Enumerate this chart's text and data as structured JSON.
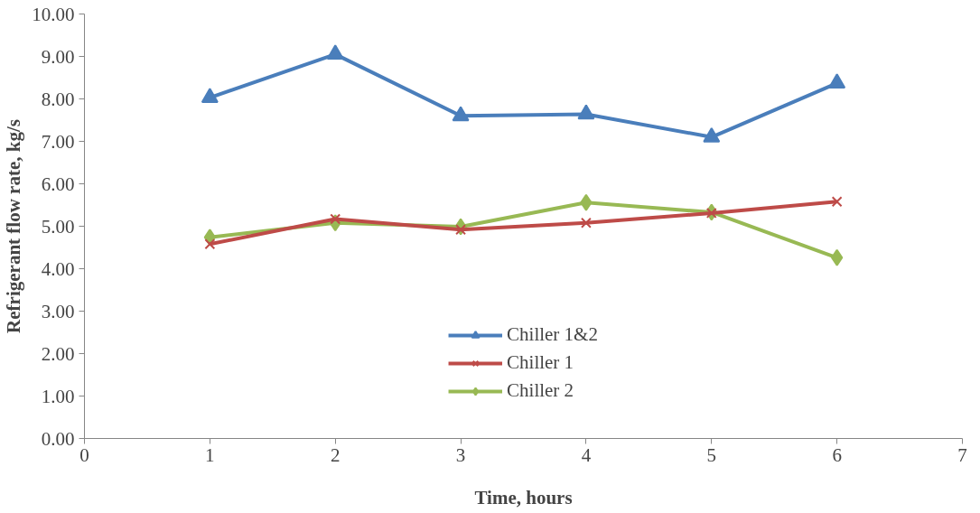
{
  "chart_data": {
    "type": "line",
    "xlabel": "Time, hours",
    "ylabel": "Refrigerant flow rate, kg/s",
    "x": [
      1,
      2,
      3,
      4,
      5,
      6
    ],
    "series": [
      {
        "name": "Chiller 1&2",
        "color": "#4a7ebb",
        "marker": "triangle",
        "values": [
          8.03,
          9.05,
          7.6,
          7.64,
          7.1,
          8.37
        ]
      },
      {
        "name": "Chiller 1",
        "color": "#be4b48",
        "marker": "cross",
        "values": [
          4.58,
          5.17,
          4.92,
          5.08,
          5.31,
          5.58
        ]
      },
      {
        "name": "Chiller 2",
        "color": "#98b954",
        "marker": "diamond",
        "values": [
          4.74,
          5.08,
          4.99,
          5.56,
          5.33,
          4.26
        ]
      }
    ],
    "xlim": [
      0,
      7
    ],
    "xticks": [
      0,
      1,
      2,
      3,
      4,
      5,
      6,
      7
    ],
    "ylim": [
      0,
      10
    ],
    "yticks": [
      {
        "value": 0,
        "label": "0.00"
      },
      {
        "value": 1,
        "label": "1.00"
      },
      {
        "value": 2,
        "label": "2.00"
      },
      {
        "value": 3,
        "label": "3.00"
      },
      {
        "value": 4,
        "label": "4.00"
      },
      {
        "value": 5,
        "label": "5.00"
      },
      {
        "value": 6,
        "label": "6.00"
      },
      {
        "value": 7,
        "label": "7.00"
      },
      {
        "value": 8,
        "label": "8.00"
      },
      {
        "value": 9,
        "label": "9.00"
      },
      {
        "value": 10,
        "label": "10.00"
      }
    ],
    "grid": false,
    "legend": "bottom",
    "line_style": "solid"
  }
}
